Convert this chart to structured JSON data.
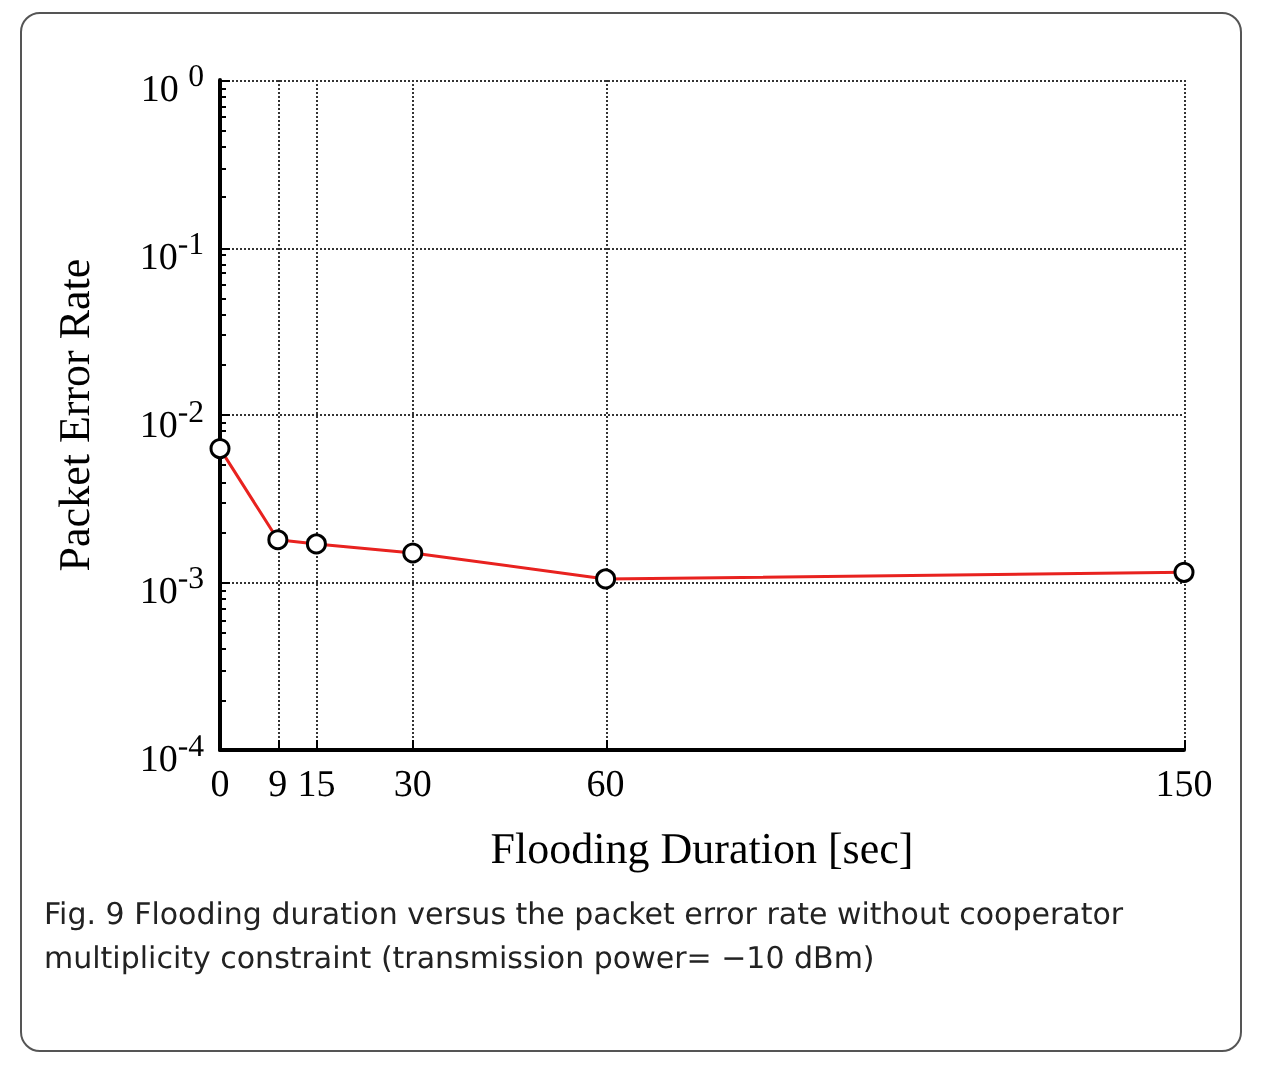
{
  "chart_data": {
    "type": "line",
    "xlabel": "Flooding Duration [sec]",
    "ylabel": "Packet Error Rate",
    "x": [
      0,
      9,
      15,
      30,
      60,
      150
    ],
    "series": [
      {
        "color": "#e8221f",
        "values": [
          0.0063,
          0.0018,
          0.0017,
          0.0015,
          0.00105,
          0.00115
        ]
      }
    ],
    "xlim": [
      0,
      150
    ],
    "xticks": [
      0,
      9,
      15,
      30,
      60,
      150
    ],
    "ylim": [
      0.0001,
      1
    ],
    "yticks": [
      {
        "value": 0.0001,
        "label": "10$^{-4}$"
      },
      {
        "value": 0.001,
        "label": "10$^{-3}$"
      },
      {
        "value": 0.01,
        "label": "10$^{-2}$"
      },
      {
        "value": 0.1,
        "label": "10$^{-1}$"
      },
      {
        "value": 1,
        "label": "10 $^{0}$"
      }
    ],
    "log": "y",
    "grid": true,
    "marker": "circle",
    "line_style": "solid",
    "annotations": [
      "Fig. 9 Flooding duration versus the packet error rate without cooperator multiplicity constraint (transmission power= −10 dBm)"
    ]
  }
}
